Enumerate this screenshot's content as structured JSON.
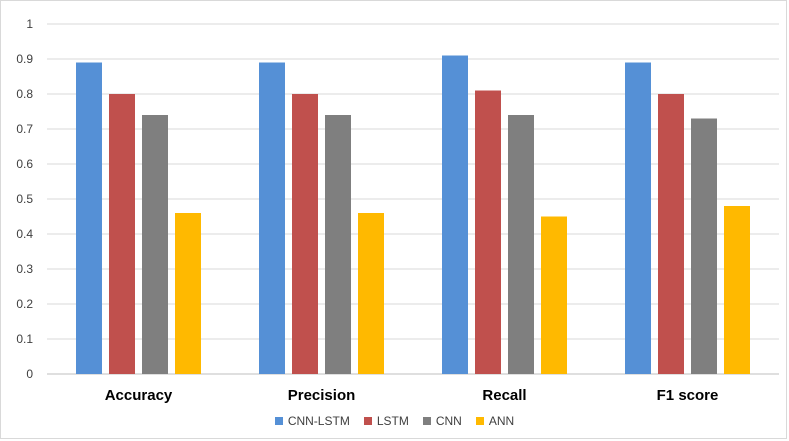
{
  "chart_data": {
    "type": "bar",
    "categories": [
      "Accuracy",
      "Precision",
      "Recall",
      "F1 score"
    ],
    "series": [
      {
        "name": "CNN-LSTM",
        "color": "#5590D6",
        "values": [
          0.89,
          0.89,
          0.91,
          0.89
        ]
      },
      {
        "name": "LSTM",
        "color": "#C0504D",
        "values": [
          0.8,
          0.8,
          0.81,
          0.8
        ]
      },
      {
        "name": "CNN",
        "color": "#7F7F7F",
        "values": [
          0.74,
          0.74,
          0.74,
          0.73
        ]
      },
      {
        "name": "ANN",
        "color": "#FFB900",
        "values": [
          0.46,
          0.46,
          0.45,
          0.48
        ]
      }
    ],
    "yticks": [
      "0",
      "0.1",
      "0.2",
      "0.3",
      "0.4",
      "0.5",
      "0.6",
      "0.7",
      "0.8",
      "0.9",
      "1"
    ],
    "ylim": [
      0,
      1
    ],
    "grid": true,
    "legend_position": "bottom"
  }
}
